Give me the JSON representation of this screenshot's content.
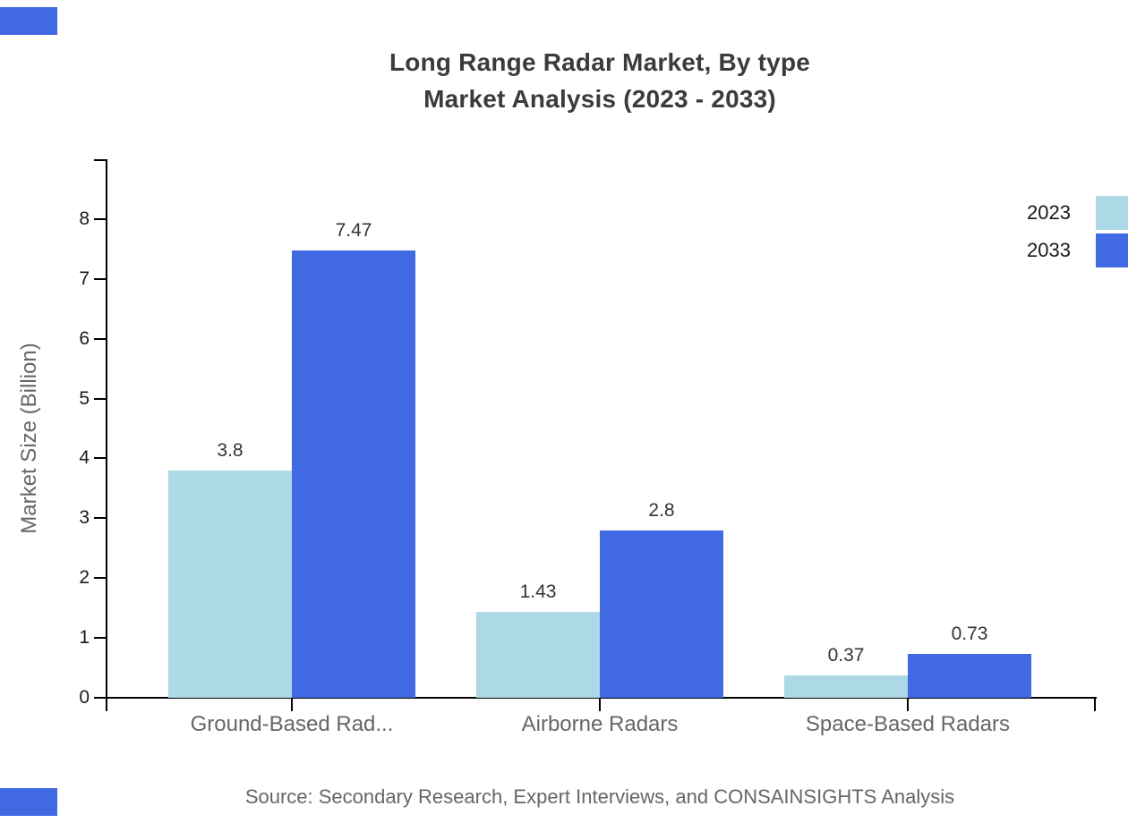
{
  "title": {
    "line1": "Long Range Radar Market, By type",
    "line2": "Market Analysis (2023 - 2033)"
  },
  "y_axis_title": "Market Size (Billion)",
  "source_note": "Source: Secondary Research, Expert Interviews, and CONSAINSIGHTS Analysis",
  "colors": {
    "series_2023": "#ADD8E6",
    "series_2033": "#4169E1",
    "corner_accent": "#4169E1",
    "axis": "#000000",
    "title_text": "#3b3b3b",
    "muted_text": "#666666",
    "tick_text": "#1a1a1a",
    "value_text": "#333333"
  },
  "legend": {
    "position": "top-right",
    "items": [
      {
        "label": "2023",
        "color": "#ADD8E6"
      },
      {
        "label": "2033",
        "color": "#4169E1"
      }
    ]
  },
  "chart_data": {
    "type": "bar",
    "title": "Long Range Radar Market, By type Market Analysis (2023 - 2033)",
    "categories": [
      "Ground-Based Rad...",
      "Airborne Radars",
      "Space-Based Radars"
    ],
    "series": [
      {
        "name": "2023",
        "color": "#ADD8E6",
        "values": [
          3.8,
          1.43,
          0.37
        ]
      },
      {
        "name": "2033",
        "color": "#4169E1",
        "values": [
          7.47,
          2.8,
          0.73
        ]
      }
    ],
    "value_labels": {
      "2023": [
        "3.8",
        "1.43",
        "0.37"
      ],
      "2033": [
        "7.47",
        "2.8",
        "0.73"
      ]
    },
    "xlabel": "",
    "ylabel": "Market Size (Billion)",
    "ylim": [
      0,
      9
    ],
    "yticks": [
      0,
      1,
      2,
      3,
      4,
      5,
      6,
      7,
      8
    ],
    "grid": false,
    "legend_position": "top-right",
    "bar_value_labels": true
  }
}
